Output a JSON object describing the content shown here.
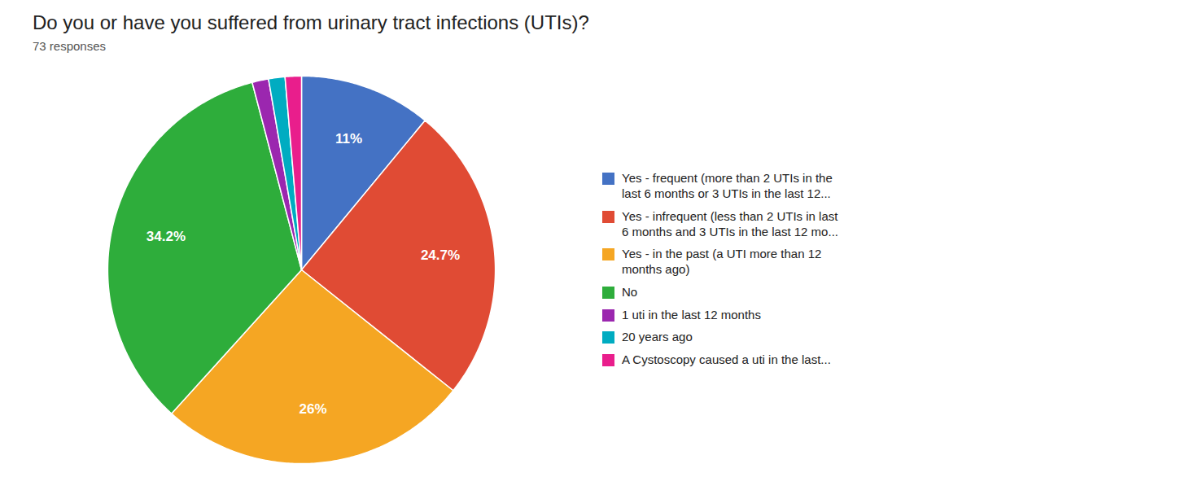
{
  "chart_data": {
    "type": "pie",
    "title": "Do you or have you suffered from urinary tract infections (UTIs)?",
    "subtitle": "73 responses",
    "categories": [
      "Yes - frequent (more than 2 UTIs in the\nlast 6 months or 3 UTIs in the last 12...",
      "Yes - infrequent (less than 2 UTIs in last\n6 months and 3 UTIs in the last 12 mo...",
      "Yes - in the past (a UTI more than 12\nmonths ago)",
      "No",
      "1 uti in the last 12 months",
      "20 years ago",
      "A Cystoscopy caused a uti in the last..."
    ],
    "values": [
      11.0,
      24.7,
      26.0,
      34.2,
      1.37,
      1.37,
      1.36
    ],
    "value_labels": [
      "11%",
      "24.7%",
      "26%",
      "34.2%",
      null,
      null,
      null
    ],
    "data_labels": true,
    "colors": [
      "#4472C4",
      "#E04B34",
      "#F5A623",
      "#2EAD3B",
      "#9B27AF",
      "#00ACC1",
      "#E91E8C"
    ],
    "legend": "right"
  }
}
